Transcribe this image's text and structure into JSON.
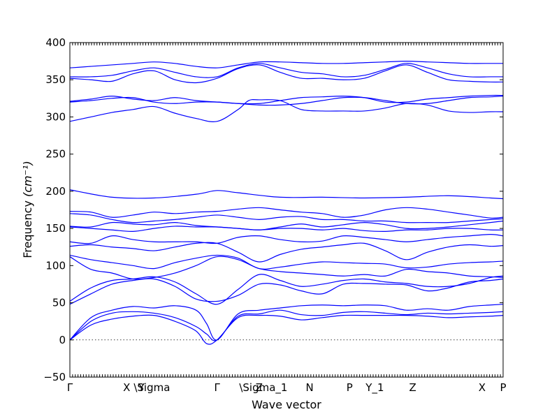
{
  "chart_data": {
    "type": "line",
    "xlabel": "Wave vector",
    "ylabel": "Frequency",
    "ylabel_unit": "(cm⁻¹)",
    "ylim": [
      -50,
      400
    ],
    "yticks": [
      -50,
      0,
      50,
      100,
      150,
      200,
      250,
      300,
      350,
      400
    ],
    "xlim": [
      0,
      2.06
    ],
    "high_symmetry_points": [
      {
        "label": "Γ",
        "x": 0.0
      },
      {
        "label": "X",
        "x": 0.27
      },
      {
        "label": "Y",
        "x": 0.34
      },
      {
        "label": "\\Sigma",
        "x": 0.39
      },
      {
        "label": "Γ",
        "x": 0.7
      },
      {
        "label": "Z",
        "x": 0.9
      },
      {
        "label": "\\Sigma_1",
        "x": 0.92
      },
      {
        "label": "N",
        "x": 1.14
      },
      {
        "label": "P",
        "x": 1.33
      },
      {
        "label": "Y_1",
        "x": 1.45
      },
      {
        "label": "Z",
        "x": 1.63
      },
      {
        "label": "X",
        "x": 1.96
      },
      {
        "label": "P",
        "x": 2.06
      }
    ],
    "zero_line": true,
    "series": [
      {
        "x": [
          0,
          0.1,
          0.2,
          0.3,
          0.4,
          0.5,
          0.6,
          0.65,
          0.7,
          0.8,
          0.9,
          1.0,
          1.1,
          1.2,
          1.3,
          1.4,
          1.5,
          1.6,
          1.7,
          1.8,
          1.9,
          2.0,
          2.06
        ],
        "values": [
          0,
          20,
          28,
          32,
          33,
          25,
          12,
          -5,
          0,
          30,
          33,
          32,
          27,
          30,
          33,
          33,
          33,
          33,
          32,
          30,
          31,
          32,
          33
        ]
      },
      {
        "x": [
          0,
          0.1,
          0.2,
          0.3,
          0.4,
          0.5,
          0.6,
          0.65,
          0.7,
          0.8,
          0.9,
          1.0,
          1.1,
          1.2,
          1.3,
          1.4,
          1.5,
          1.6,
          1.7,
          1.8,
          1.9,
          2.0,
          2.06
        ],
        "values": [
          0,
          25,
          36,
          38,
          36,
          30,
          18,
          8,
          0,
          32,
          35,
          40,
          34,
          33,
          37,
          38,
          36,
          34,
          36,
          35,
          36,
          37,
          38
        ]
      },
      {
        "x": [
          0,
          0.1,
          0.2,
          0.3,
          0.4,
          0.5,
          0.6,
          0.65,
          0.7,
          0.8,
          0.9,
          1.0,
          1.1,
          1.2,
          1.3,
          1.4,
          1.5,
          1.6,
          1.7,
          1.8,
          1.9,
          2.0,
          2.06
        ],
        "values": [
          0,
          30,
          40,
          45,
          43,
          46,
          40,
          22,
          0,
          35,
          40,
          43,
          46,
          47,
          46,
          47,
          46,
          40,
          42,
          40,
          45,
          47,
          48
        ]
      },
      {
        "x": [
          0,
          0.1,
          0.2,
          0.3,
          0.4,
          0.5,
          0.6,
          0.7,
          0.8,
          0.9,
          1.0,
          1.1,
          1.2,
          1.3,
          1.4,
          1.5,
          1.6,
          1.7,
          1.8,
          1.9,
          2.0,
          2.06
        ],
        "values": [
          48,
          62,
          75,
          80,
          82,
          72,
          55,
          52,
          60,
          75,
          74,
          66,
          62,
          75,
          76,
          75,
          74,
          66,
          70,
          78,
          80,
          82
        ]
      },
      {
        "x": [
          0,
          0.1,
          0.2,
          0.3,
          0.4,
          0.5,
          0.6,
          0.7,
          0.8,
          0.9,
          1.0,
          1.1,
          1.2,
          1.3,
          1.4,
          1.5,
          1.6,
          1.7,
          1.8,
          1.9,
          2.0,
          2.06
        ],
        "values": [
          52,
          70,
          80,
          82,
          85,
          78,
          62,
          48,
          68,
          88,
          80,
          72,
          75,
          80,
          82,
          78,
          76,
          72,
          72,
          76,
          84,
          86
        ]
      },
      {
        "x": [
          0,
          0.1,
          0.2,
          0.3,
          0.4,
          0.5,
          0.6,
          0.7,
          0.8,
          0.9,
          1.0,
          1.1,
          1.2,
          1.3,
          1.4,
          1.5,
          1.6,
          1.7,
          1.8,
          1.9,
          2.0,
          2.06
        ],
        "values": [
          112,
          95,
          90,
          82,
          84,
          90,
          100,
          112,
          108,
          96,
          92,
          90,
          88,
          86,
          88,
          86,
          95,
          92,
          90,
          86,
          85,
          84
        ]
      },
      {
        "x": [
          0,
          0.1,
          0.2,
          0.3,
          0.4,
          0.5,
          0.6,
          0.7,
          0.8,
          0.9,
          1.0,
          1.1,
          1.2,
          1.3,
          1.4,
          1.5,
          1.6,
          1.7,
          1.8,
          1.9,
          2.0,
          2.06
        ],
        "values": [
          114,
          108,
          104,
          100,
          96,
          104,
          110,
          114,
          110,
          96,
          98,
          102,
          105,
          104,
          103,
          102,
          97,
          98,
          102,
          104,
          105,
          106
        ]
      },
      {
        "x": [
          0,
          0.1,
          0.2,
          0.3,
          0.4,
          0.5,
          0.6,
          0.7,
          0.8,
          0.9,
          1.0,
          1.1,
          1.2,
          1.3,
          1.4,
          1.5,
          1.6,
          1.7,
          1.8,
          1.9,
          2.0,
          2.06
        ],
        "values": [
          126,
          128,
          125,
          123,
          120,
          125,
          130,
          130,
          118,
          105,
          115,
          122,
          125,
          128,
          130,
          120,
          108,
          118,
          125,
          128,
          126,
          127
        ]
      },
      {
        "x": [
          0,
          0.1,
          0.2,
          0.3,
          0.4,
          0.5,
          0.6,
          0.7,
          0.8,
          0.9,
          1.0,
          1.1,
          1.2,
          1.3,
          1.4,
          1.5,
          1.6,
          1.7,
          1.8,
          1.9,
          2.0,
          2.06
        ],
        "values": [
          132,
          130,
          140,
          135,
          132,
          132,
          132,
          130,
          138,
          140,
          135,
          132,
          133,
          140,
          138,
          135,
          132,
          135,
          138,
          140,
          142,
          140
        ]
      },
      {
        "x": [
          0,
          0.1,
          0.2,
          0.3,
          0.4,
          0.5,
          0.6,
          0.7,
          0.8,
          0.9,
          1.0,
          1.1,
          1.2,
          1.3,
          1.4,
          1.5,
          1.6,
          1.7,
          1.8,
          1.9,
          2.0,
          2.06
        ],
        "values": [
          152,
          150,
          148,
          146,
          150,
          153,
          152,
          152,
          150,
          148,
          150,
          150,
          148,
          150,
          147,
          146,
          148,
          148,
          150,
          150,
          148,
          148
        ]
      },
      {
        "x": [
          0,
          0.1,
          0.2,
          0.3,
          0.4,
          0.5,
          0.6,
          0.7,
          0.8,
          0.9,
          1.0,
          1.1,
          1.2,
          1.3,
          1.4,
          1.5,
          1.6,
          1.7,
          1.8,
          1.9,
          2.0,
          2.06
        ],
        "values": [
          153,
          152,
          158,
          156,
          155,
          158,
          154,
          152,
          150,
          148,
          152,
          156,
          152,
          155,
          158,
          155,
          150,
          150,
          152,
          155,
          158,
          160
        ]
      },
      {
        "x": [
          0,
          0.1,
          0.2,
          0.3,
          0.4,
          0.5,
          0.6,
          0.7,
          0.8,
          0.9,
          1.0,
          1.1,
          1.2,
          1.3,
          1.4,
          1.5,
          1.6,
          1.7,
          1.8,
          1.9,
          2.0,
          2.06
        ],
        "values": [
          170,
          168,
          162,
          158,
          160,
          162,
          165,
          168,
          165,
          162,
          165,
          166,
          162,
          162,
          160,
          160,
          158,
          158,
          158,
          160,
          162,
          163
        ]
      },
      {
        "x": [
          0,
          0.1,
          0.2,
          0.3,
          0.4,
          0.5,
          0.6,
          0.7,
          0.8,
          0.9,
          1.0,
          1.1,
          1.2,
          1.3,
          1.4,
          1.5,
          1.6,
          1.7,
          1.8,
          1.9,
          2.0,
          2.06
        ],
        "values": [
          173,
          172,
          165,
          168,
          172,
          170,
          172,
          173,
          176,
          178,
          175,
          172,
          170,
          165,
          168,
          175,
          178,
          176,
          172,
          168,
          164,
          165
        ]
      },
      {
        "x": [
          0,
          0.2,
          0.4,
          0.6,
          0.7,
          0.8,
          1.0,
          1.2,
          1.4,
          1.6,
          1.8,
          2.0,
          2.06
        ],
        "values": [
          202,
          192,
          191,
          196,
          201,
          198,
          192,
          192,
          191,
          192,
          194,
          191,
          190
        ]
      },
      {
        "x": [
          0,
          0.1,
          0.2,
          0.3,
          0.4,
          0.5,
          0.6,
          0.7,
          0.8,
          0.85,
          0.9,
          1.0,
          1.1,
          1.2,
          1.3,
          1.4,
          1.5,
          1.6,
          1.7,
          1.8,
          1.9,
          2.0,
          2.06
        ],
        "values": [
          294,
          300,
          306,
          310,
          314,
          305,
          298,
          294,
          310,
          322,
          323,
          322,
          310,
          308,
          308,
          308,
          312,
          318,
          316,
          308,
          306,
          307,
          307
        ]
      },
      {
        "x": [
          0,
          0.1,
          0.2,
          0.3,
          0.4,
          0.5,
          0.6,
          0.7,
          0.8,
          0.9,
          1.0,
          1.1,
          1.2,
          1.3,
          1.4,
          1.5,
          1.6,
          1.7,
          1.8,
          1.9,
          2.0,
          2.06
        ],
        "values": [
          320,
          322,
          325,
          326,
          320,
          318,
          320,
          320,
          318,
          316,
          316,
          318,
          322,
          326,
          326,
          322,
          318,
          318,
          322,
          326,
          327,
          328
        ]
      },
      {
        "x": [
          0,
          0.1,
          0.2,
          0.3,
          0.4,
          0.5,
          0.6,
          0.7,
          0.8,
          0.9,
          1.0,
          1.1,
          1.2,
          1.3,
          1.4,
          1.5,
          1.6,
          1.7,
          1.8,
          1.9,
          2.0,
          2.06
        ],
        "values": [
          321,
          324,
          328,
          324,
          322,
          326,
          322,
          320,
          318,
          318,
          322,
          326,
          327,
          328,
          326,
          320,
          320,
          324,
          326,
          328,
          329,
          329
        ]
      },
      {
        "x": [
          0,
          0.1,
          0.2,
          0.3,
          0.4,
          0.5,
          0.6,
          0.7,
          0.8,
          0.9,
          1.0,
          1.1,
          1.2,
          1.3,
          1.4,
          1.5,
          1.6,
          1.7,
          1.8,
          1.9,
          2.0,
          2.06
        ],
        "values": [
          352,
          350,
          348,
          358,
          362,
          350,
          346,
          352,
          365,
          370,
          360,
          352,
          352,
          350,
          352,
          362,
          370,
          360,
          350,
          348,
          347,
          347
        ]
      },
      {
        "x": [
          0,
          0.1,
          0.2,
          0.3,
          0.4,
          0.5,
          0.6,
          0.7,
          0.8,
          0.9,
          1.0,
          1.1,
          1.2,
          1.3,
          1.4,
          1.5,
          1.6,
          1.7,
          1.8,
          1.9,
          2.0,
          2.06
        ],
        "values": [
          354,
          354,
          356,
          362,
          366,
          360,
          354,
          354,
          366,
          372,
          366,
          360,
          358,
          354,
          356,
          364,
          372,
          366,
          358,
          354,
          354,
          354
        ]
      },
      {
        "x": [
          0,
          0.1,
          0.2,
          0.3,
          0.4,
          0.5,
          0.6,
          0.7,
          0.8,
          0.9,
          1.0,
          1.1,
          1.2,
          1.3,
          1.4,
          1.5,
          1.6,
          1.7,
          1.8,
          1.9,
          2.0,
          2.06
        ],
        "values": [
          366,
          368,
          370,
          372,
          374,
          372,
          368,
          366,
          370,
          374,
          374,
          373,
          372,
          372,
          373,
          374,
          375,
          374,
          373,
          372,
          372,
          372
        ]
      }
    ]
  }
}
